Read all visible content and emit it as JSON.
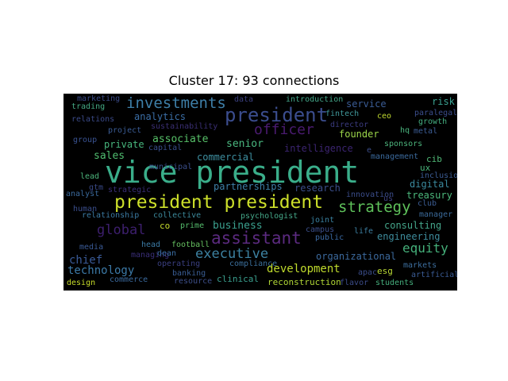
{
  "title": "Cluster 17: 93 connections",
  "background": "#000000",
  "words": [
    {
      "text": "vice president",
      "color": "#3aae8a"
    },
    {
      "text": "president president",
      "color": "#cde02a"
    },
    {
      "text": "assistant",
      "color": "#5b2a80"
    },
    {
      "text": "investments",
      "color": "#3e7fa8"
    },
    {
      "text": "president",
      "color": "#3b4d8e"
    },
    {
      "text": "officer",
      "color": "#4a1b70"
    },
    {
      "text": "strategy",
      "color": "#5fc25b"
    },
    {
      "text": "executive",
      "color": "#3d82a2"
    },
    {
      "text": "global",
      "color": "#3d1f6e"
    },
    {
      "text": "equity",
      "color": "#45b07a"
    },
    {
      "text": "development",
      "color": "#bfda2c"
    },
    {
      "text": "technology",
      "color": "#3c7aa8"
    },
    {
      "text": "chief",
      "color": "#3a5b98"
    },
    {
      "text": "business",
      "color": "#3ba18f"
    },
    {
      "text": "sales",
      "color": "#50be70"
    },
    {
      "text": "associate",
      "color": "#57c068"
    },
    {
      "text": "senior",
      "color": "#4ab880"
    },
    {
      "text": "commercial",
      "color": "#3e8fa0"
    },
    {
      "text": "intelligence",
      "color": "#3b2470"
    },
    {
      "text": "partnerships",
      "color": "#3e7fa6"
    },
    {
      "text": "research",
      "color": "#3b4e8a"
    },
    {
      "text": "analytics",
      "color": "#3b6ea6"
    },
    {
      "text": "private",
      "color": "#47b67d"
    },
    {
      "text": "founder",
      "color": "#9cd64a"
    },
    {
      "text": "service",
      "color": "#3b5d96"
    },
    {
      "text": "risk",
      "color": "#3ba292"
    },
    {
      "text": "organizational",
      "color": "#3c6a9e"
    },
    {
      "text": "engineering",
      "color": "#3e8c9c"
    },
    {
      "text": "treasury",
      "color": "#4cb87c"
    },
    {
      "text": "consulting",
      "color": "#44a58a"
    },
    {
      "text": "digital",
      "color": "#3b8a9e"
    },
    {
      "text": "reconstruction",
      "color": "#b0d635"
    },
    {
      "text": "clinical",
      "color": "#3a9f8e"
    },
    {
      "text": "banking",
      "color": "#3a5d94"
    },
    {
      "text": "design",
      "color": "#c8dd2a"
    },
    {
      "text": "commerce",
      "color": "#3b6a9e"
    },
    {
      "text": "resource",
      "color": "#3d4f8a"
    },
    {
      "text": "students",
      "color": "#45ad7c"
    },
    {
      "text": "flavor",
      "color": "#3b4b88"
    },
    {
      "text": "markets",
      "color": "#3d6e9e"
    },
    {
      "text": "artificial",
      "color": "#3b5c96"
    },
    {
      "text": "esg",
      "color": "#b8d834"
    },
    {
      "text": "apac",
      "color": "#3b4d8a"
    },
    {
      "text": "public",
      "color": "#3b6aa4"
    },
    {
      "text": "life",
      "color": "#3c7ea0"
    },
    {
      "text": "joint",
      "color": "#3b83a2"
    },
    {
      "text": "campus",
      "color": "#3b4f8a"
    },
    {
      "text": "psychologist",
      "color": "#45a98a"
    },
    {
      "text": "compliance",
      "color": "#3b6e9a"
    },
    {
      "text": "operating",
      "color": "#3a3f80"
    },
    {
      "text": "managing",
      "color": "#3a2e78"
    },
    {
      "text": "football",
      "color": "#66c060"
    },
    {
      "text": "head",
      "color": "#3b7aa4"
    },
    {
      "text": "dean",
      "color": "#3b6ea4"
    },
    {
      "text": "prime",
      "color": "#55bc6c"
    },
    {
      "text": "co",
      "color": "#c7dc2c"
    },
    {
      "text": "collective",
      "color": "#3c8a9c"
    },
    {
      "text": "media",
      "color": "#3a5a96"
    },
    {
      "text": "relationship",
      "color": "#3b7aa2"
    },
    {
      "text": "human",
      "color": "#3b4e8c"
    },
    {
      "text": "analyst",
      "color": "#3b6a9c"
    },
    {
      "text": "strategic",
      "color": "#3a2f78"
    },
    {
      "text": "lead",
      "color": "#4cb57c"
    },
    {
      "text": "gtm",
      "color": "#3a4a88"
    },
    {
      "text": "capital",
      "color": "#3a4f8c"
    },
    {
      "text": "municipal",
      "color": "#3b4f8c"
    },
    {
      "text": "group",
      "color": "#3a5392"
    },
    {
      "text": "project",
      "color": "#3b5d96"
    },
    {
      "text": "sustainability",
      "color": "#3a2f74"
    },
    {
      "text": "relations",
      "color": "#3b4a88"
    },
    {
      "text": "trading",
      "color": "#45aa84"
    },
    {
      "text": "marketing",
      "color": "#3a4a86"
    },
    {
      "text": "data",
      "color": "#3a3f7e"
    },
    {
      "text": "introduction",
      "color": "#44a88a"
    },
    {
      "text": "fintech",
      "color": "#40989a"
    },
    {
      "text": "director",
      "color": "#3a3a7e"
    },
    {
      "text": "ceo",
      "color": "#c0da30"
    },
    {
      "text": "hq",
      "color": "#4ab47e"
    },
    {
      "text": "paralegal",
      "color": "#3b4d8c"
    },
    {
      "text": "growth",
      "color": "#45ae80"
    },
    {
      "text": "metal",
      "color": "#3b5c94"
    },
    {
      "text": "management",
      "color": "#3b6a9c"
    },
    {
      "text": "sponsors",
      "color": "#4cb47c"
    },
    {
      "text": "cib",
      "color": "#50b876"
    },
    {
      "text": "ux",
      "color": "#4ab47a"
    },
    {
      "text": "inclusion",
      "color": "#3b5c94"
    },
    {
      "text": "innovation",
      "color": "#3b4d8a"
    },
    {
      "text": "us",
      "color": "#3a3f7e"
    },
    {
      "text": "club",
      "color": "#3b5c92"
    },
    {
      "text": "manager",
      "color": "#3b6a9a"
    },
    {
      "text": "e",
      "color": "#3b4d88"
    }
  ]
}
